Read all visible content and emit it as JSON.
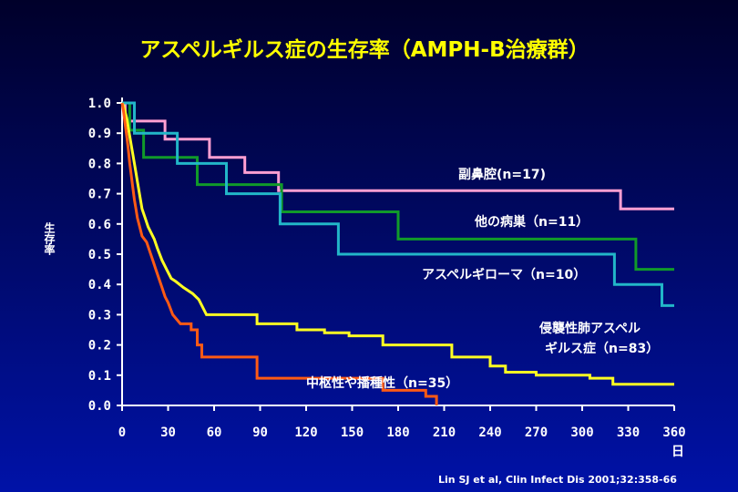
{
  "chart_data": {
    "type": "line",
    "title": "アスペルギルス症の生存率（AMPH-B治療群）",
    "ylabel": "生存率",
    "xlabel": "日",
    "xlim": [
      0,
      360
    ],
    "ylim": [
      0,
      1.0
    ],
    "x_ticks": [
      "0",
      "30",
      "60",
      "90",
      "120",
      "150",
      "180",
      "210",
      "240",
      "270",
      "300",
      "330",
      "360"
    ],
    "y_ticks": [
      "0.0",
      "0.1",
      "0.2",
      "0.3",
      "0.4",
      "0.5",
      "0.6",
      "0.7",
      "0.8",
      "0.9",
      "1.0"
    ],
    "source": "Lin SJ et al, Clin Infect Dis 2001;32:358-66",
    "series": [
      {
        "name": "副鼻腔(n=17)",
        "color": "#ff9fd2",
        "points": [
          [
            0,
            1.0
          ],
          [
            2,
            1.0
          ],
          [
            2,
            0.94
          ],
          [
            28,
            0.94
          ],
          [
            28,
            0.88
          ],
          [
            57,
            0.88
          ],
          [
            57,
            0.82
          ],
          [
            80,
            0.82
          ],
          [
            80,
            0.77
          ],
          [
            102,
            0.77
          ],
          [
            102,
            0.71
          ],
          [
            325,
            0.71
          ],
          [
            325,
            0.65
          ],
          [
            360,
            0.65
          ]
        ]
      },
      {
        "name": "他の病巣（n=11）",
        "color": "#119a2a",
        "points": [
          [
            0,
            1.0
          ],
          [
            5,
            1.0
          ],
          [
            5,
            0.91
          ],
          [
            14,
            0.91
          ],
          [
            14,
            0.82
          ],
          [
            49,
            0.82
          ],
          [
            49,
            0.73
          ],
          [
            104,
            0.73
          ],
          [
            104,
            0.64
          ],
          [
            180,
            0.64
          ],
          [
            180,
            0.55
          ],
          [
            335,
            0.55
          ],
          [
            335,
            0.45
          ],
          [
            360,
            0.45
          ]
        ]
      },
      {
        "name": "アスペルギローマ（n=10）",
        "color": "#22b6c8",
        "points": [
          [
            0,
            1.0
          ],
          [
            8,
            1.0
          ],
          [
            8,
            0.9
          ],
          [
            36,
            0.9
          ],
          [
            36,
            0.8
          ],
          [
            68,
            0.8
          ],
          [
            68,
            0.7
          ],
          [
            103,
            0.7
          ],
          [
            103,
            0.6
          ],
          [
            141,
            0.6
          ],
          [
            141,
            0.5
          ],
          [
            321,
            0.5
          ],
          [
            321,
            0.4
          ],
          [
            352,
            0.4
          ],
          [
            352,
            0.33
          ],
          [
            360,
            0.33
          ]
        ]
      },
      {
        "name": "侵襲性肺アスペルギルス症（n=83）",
        "color": "#ffff22",
        "points": [
          [
            0,
            1.0
          ],
          [
            1,
            0.99
          ],
          [
            2,
            0.97
          ],
          [
            3,
            0.95
          ],
          [
            4,
            0.92
          ],
          [
            5,
            0.89
          ],
          [
            6,
            0.86
          ],
          [
            7,
            0.83
          ],
          [
            8,
            0.8
          ],
          [
            9,
            0.77
          ],
          [
            10,
            0.74
          ],
          [
            11,
            0.71
          ],
          [
            12,
            0.68
          ],
          [
            13,
            0.65
          ],
          [
            15,
            0.62
          ],
          [
            17,
            0.59
          ],
          [
            19,
            0.57
          ],
          [
            21,
            0.55
          ],
          [
            23,
            0.52
          ],
          [
            26,
            0.48
          ],
          [
            29,
            0.45
          ],
          [
            32,
            0.42
          ],
          [
            35,
            0.41
          ],
          [
            40,
            0.39
          ],
          [
            46,
            0.37
          ],
          [
            50,
            0.35
          ],
          [
            55,
            0.3
          ],
          [
            88,
            0.3
          ],
          [
            88,
            0.27
          ],
          [
            114,
            0.27
          ],
          [
            114,
            0.25
          ],
          [
            132,
            0.25
          ],
          [
            132,
            0.24
          ],
          [
            148,
            0.24
          ],
          [
            148,
            0.23
          ],
          [
            170,
            0.23
          ],
          [
            170,
            0.2
          ],
          [
            215,
            0.2
          ],
          [
            215,
            0.16
          ],
          [
            240,
            0.16
          ],
          [
            240,
            0.13
          ],
          [
            250,
            0.13
          ],
          [
            250,
            0.11
          ],
          [
            270,
            0.11
          ],
          [
            270,
            0.1
          ],
          [
            305,
            0.1
          ],
          [
            305,
            0.09
          ],
          [
            320,
            0.09
          ],
          [
            320,
            0.07
          ],
          [
            360,
            0.07
          ]
        ]
      },
      {
        "name": "中枢性や播種性（n=35）",
        "color": "#ff5a14",
        "points": [
          [
            0,
            1.0
          ],
          [
            1,
            0.97
          ],
          [
            2,
            0.93
          ],
          [
            3,
            0.89
          ],
          [
            4,
            0.85
          ],
          [
            5,
            0.8
          ],
          [
            6,
            0.76
          ],
          [
            7,
            0.72
          ],
          [
            8,
            0.68
          ],
          [
            9,
            0.65
          ],
          [
            10,
            0.62
          ],
          [
            11,
            0.6
          ],
          [
            12,
            0.58
          ],
          [
            13,
            0.56
          ],
          [
            16,
            0.54
          ],
          [
            18,
            0.51
          ],
          [
            20,
            0.48
          ],
          [
            22,
            0.45
          ],
          [
            24,
            0.42
          ],
          [
            26,
            0.39
          ],
          [
            28,
            0.36
          ],
          [
            30,
            0.34
          ],
          [
            33,
            0.3
          ],
          [
            38,
            0.27
          ],
          [
            45,
            0.27
          ],
          [
            45,
            0.25
          ],
          [
            49,
            0.25
          ],
          [
            49,
            0.2
          ],
          [
            52,
            0.2
          ],
          [
            52,
            0.16
          ],
          [
            88,
            0.16
          ],
          [
            88,
            0.13
          ],
          [
            88,
            0.09
          ],
          [
            170,
            0.09
          ],
          [
            170,
            0.05
          ],
          [
            198,
            0.05
          ],
          [
            198,
            0.03
          ],
          [
            205,
            0.03
          ],
          [
            205,
            0.0
          ]
        ]
      }
    ],
    "annotations": [
      {
        "series": 0,
        "text": "副鼻腔(n=17)"
      },
      {
        "series": 1,
        "text": "他の病巣（n=11）"
      },
      {
        "series": 2,
        "text": "アスペルギローマ（n=10）"
      },
      {
        "series": 3,
        "text": "侵襲性肺アスペル",
        "text2": "ギルス症（n=83）"
      },
      {
        "series": 4,
        "text": "中枢性や播種性（n=35）"
      }
    ]
  }
}
